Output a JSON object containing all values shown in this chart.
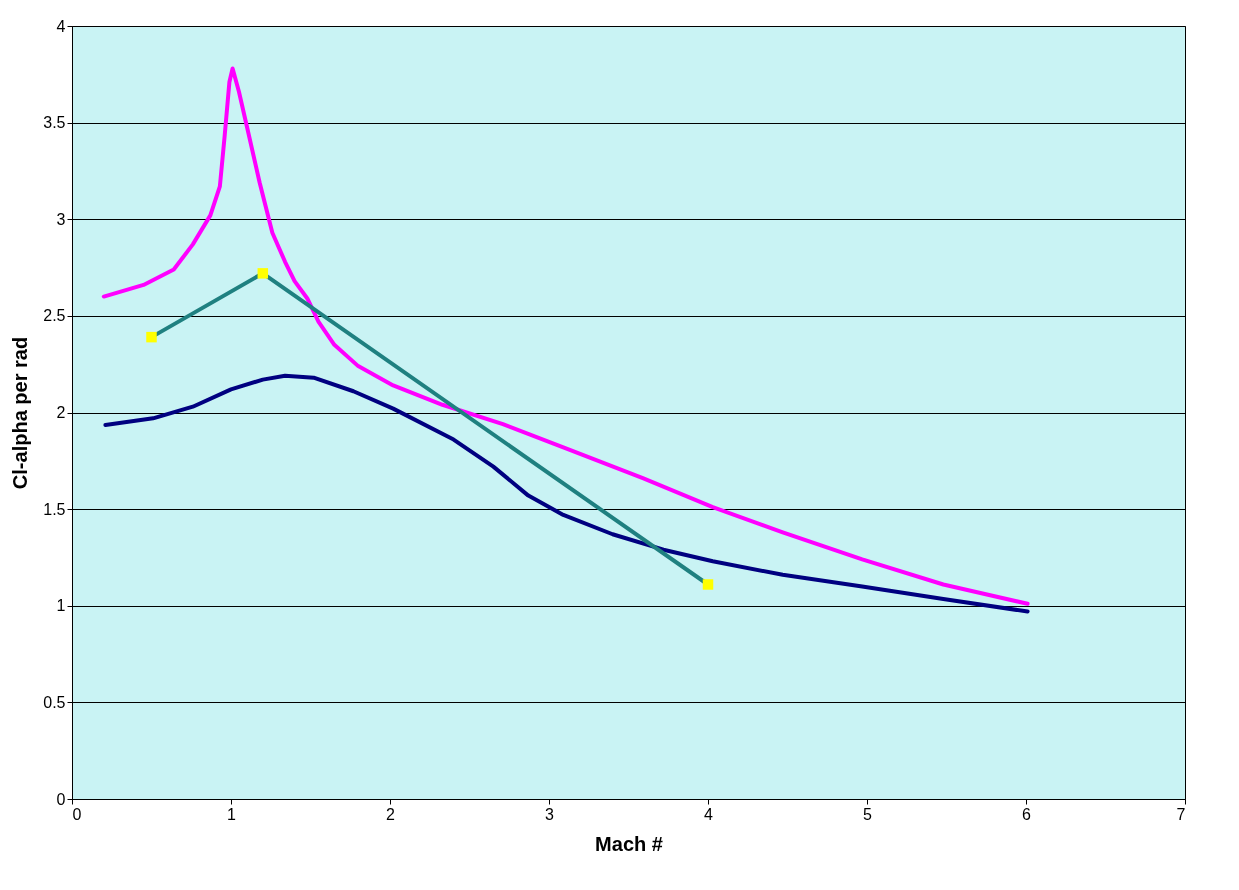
{
  "chart_data": {
    "type": "line",
    "xlabel": "Mach #",
    "ylabel": "Cl-alpha per rad",
    "xlim": [
      0,
      7
    ],
    "xticks": [
      0,
      1,
      2,
      3,
      4,
      5,
      6,
      7
    ],
    "ylim": [
      0,
      4
    ],
    "yticks": [
      0,
      0.5,
      1,
      1.5,
      2,
      2.5,
      3,
      3.5,
      4
    ],
    "grid": "y",
    "line_style": "solid",
    "series": [
      {
        "color": "#000080",
        "marker": "none",
        "x": [
          0.21,
          0.51,
          0.76,
          1.0,
          1.2,
          1.34,
          1.52,
          1.77,
          2.02,
          2.4,
          2.65,
          2.87,
          3.09,
          3.4,
          3.72,
          4.03,
          4.47,
          4.97,
          5.48,
          6.01
        ],
        "values": [
          1.935,
          1.97,
          2.03,
          2.12,
          2.17,
          2.19,
          2.18,
          2.11,
          2.02,
          1.86,
          1.72,
          1.57,
          1.47,
          1.37,
          1.29,
          1.23,
          1.16,
          1.1,
          1.035,
          0.97
        ]
      },
      {
        "color": "#ff00ff",
        "marker": "none",
        "x": [
          0.2,
          0.45,
          0.64,
          0.76,
          0.87,
          0.93,
          0.96,
          0.99,
          1.01,
          1.05,
          1.1,
          1.18,
          1.26,
          1.34,
          1.4,
          1.48,
          1.55,
          1.65,
          1.8,
          2.02,
          2.33,
          2.71,
          3.09,
          3.59,
          4.03,
          4.47,
          4.97,
          5.48,
          6.01
        ],
        "values": [
          2.6,
          2.66,
          2.74,
          2.87,
          3.02,
          3.17,
          3.43,
          3.71,
          3.78,
          3.66,
          3.48,
          3.19,
          2.93,
          2.78,
          2.68,
          2.59,
          2.47,
          2.35,
          2.24,
          2.14,
          2.04,
          1.94,
          1.82,
          1.66,
          1.51,
          1.38,
          1.24,
          1.11,
          1.01
        ]
      },
      {
        "color": "#1f8080",
        "marker": "square",
        "x": [
          0.5,
          1.2,
          4.0
        ],
        "values": [
          2.39,
          2.72,
          1.11
        ]
      }
    ]
  }
}
